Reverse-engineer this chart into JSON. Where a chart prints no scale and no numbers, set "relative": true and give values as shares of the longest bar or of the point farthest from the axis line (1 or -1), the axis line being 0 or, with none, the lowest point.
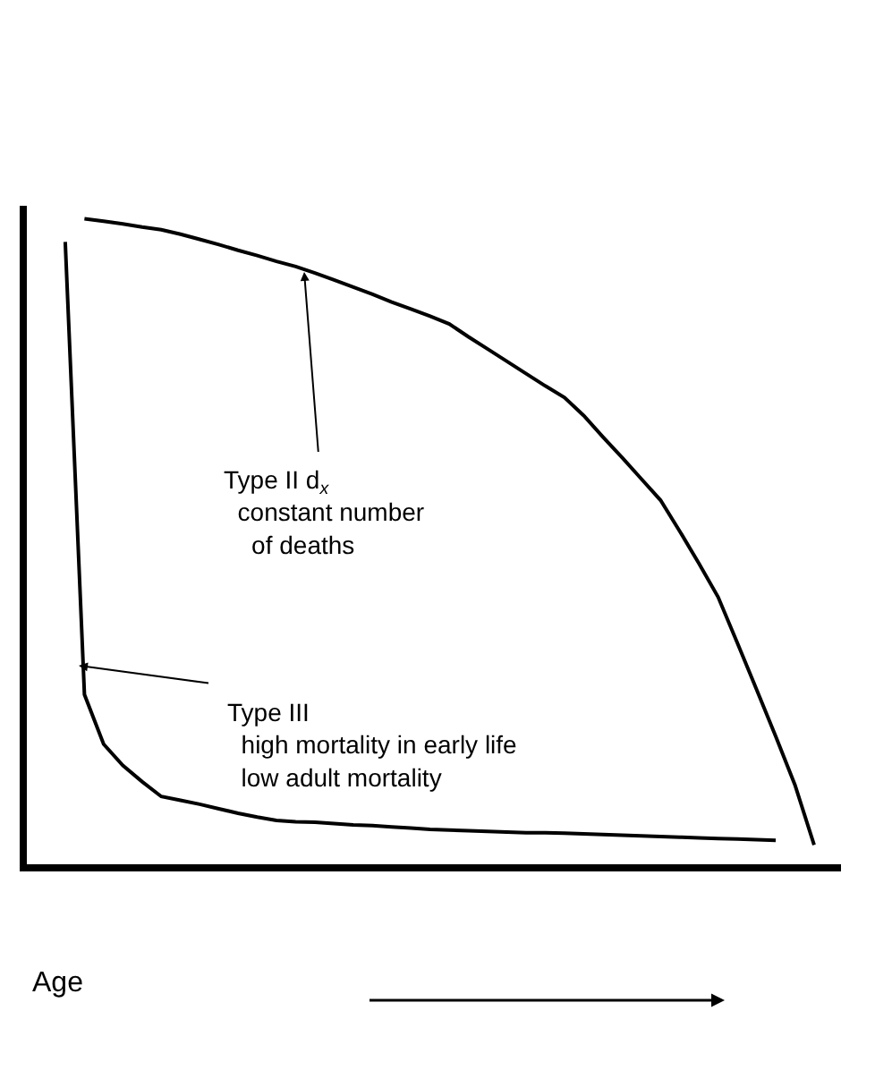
{
  "chart_data": {
    "type": "line",
    "relative": true,
    "xlabel": "Age",
    "legend": false,
    "marker": "none",
    "line_style": "solid",
    "categories": [
      null,
      null,
      null,
      null,
      null,
      null,
      null,
      null,
      null,
      null,
      null,
      null,
      null,
      null,
      null,
      null,
      null,
      null,
      null,
      null,
      null,
      null,
      null,
      null,
      null,
      null,
      null,
      null,
      null,
      null,
      null,
      null,
      null,
      null,
      null,
      null,
      null,
      null,
      null,
      null
    ],
    "series": [
      {
        "color": "#000000",
        "values": [
          null,
          1.0,
          0.996,
          0.992,
          0.987,
          0.983,
          0.976,
          0.968,
          0.96,
          0.951,
          0.943,
          0.934,
          0.926,
          0.916,
          0.905,
          0.894,
          0.883,
          0.871,
          0.86,
          0.849,
          0.837,
          0.817,
          0.798,
          0.779,
          0.76,
          0.741,
          0.723,
          0.695,
          0.662,
          0.63,
          0.597,
          0.564,
          0.516,
          0.466,
          0.414,
          0.343,
          0.271,
          0.198,
          0.123,
          0.03
        ]
      },
      {
        "color": "#000000",
        "values": [
          0.964,
          0.263,
          0.186,
          0.153,
          0.128,
          0.105,
          0.099,
          0.093,
          0.086,
          0.079,
          0.073,
          0.068,
          0.066,
          0.065,
          0.063,
          0.061,
          0.06,
          0.058,
          0.056,
          0.054,
          0.053,
          0.052,
          0.051,
          0.05,
          0.049,
          0.049,
          0.048,
          0.047,
          0.046,
          0.045,
          0.044,
          0.043,
          0.042,
          0.041,
          0.04,
          0.039,
          0.038,
          0.037,
          null,
          null
        ]
      }
    ],
    "annotations": [
      "Type II d$_{x}$\n  constant number\n    of deaths",
      "Type III\n  high mortality in early life\n  low adult mortality"
    ]
  }
}
